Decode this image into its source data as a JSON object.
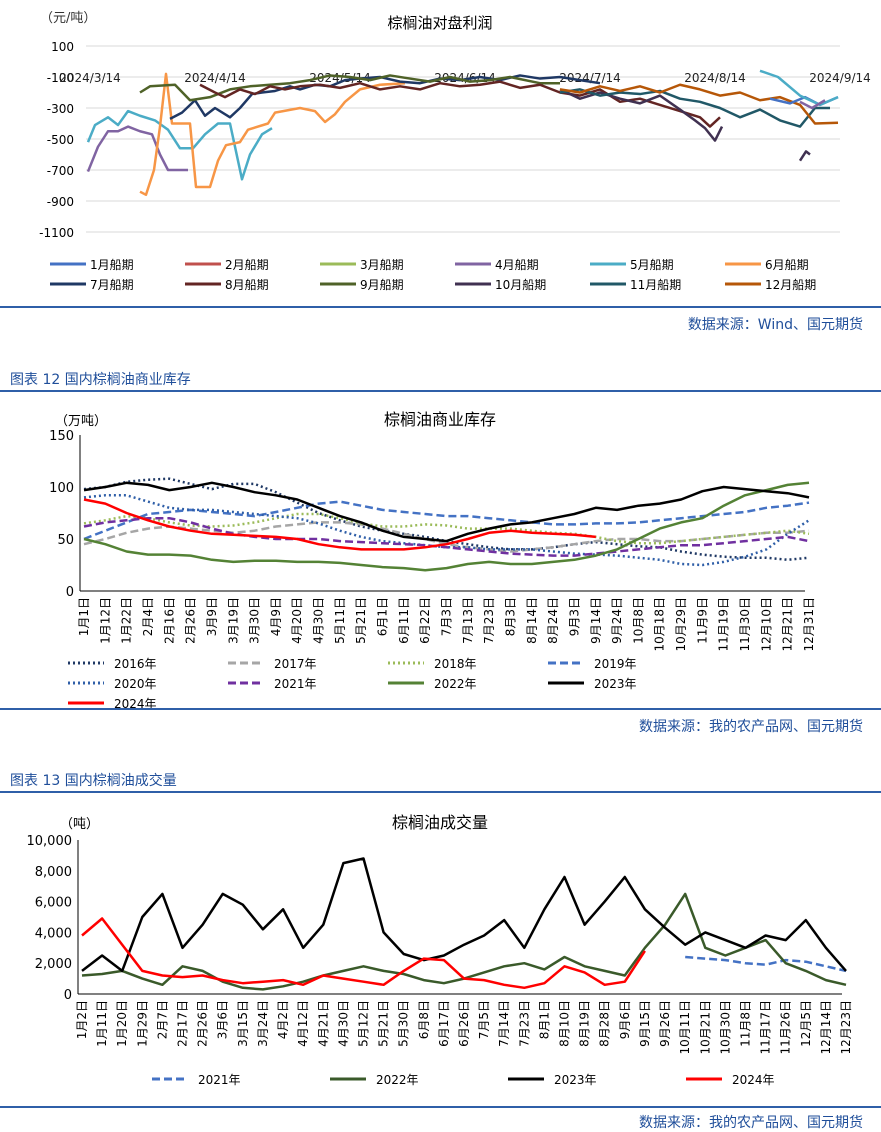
{
  "charts": [
    {
      "type": "line",
      "title": "棕榈油对盘利润",
      "unit": "（元/吨）",
      "ylim": [
        -1100,
        100
      ],
      "yticks": [
        "100",
        "-100",
        "-300",
        "-500",
        "-700",
        "-900",
        "-1100"
      ],
      "xticks": [
        "2024/3/14",
        "2024/4/14",
        "2024/5/14",
        "2024/6/14",
        "2024/7/14",
        "2024/8/14",
        "2024/9/14"
      ],
      "source": "数据来源：Wind、国元期货",
      "series": [
        {
          "name": "1月船期",
          "color": "#4472c4"
        },
        {
          "name": "2月船期",
          "color": "#c0504d"
        },
        {
          "name": "3月船期",
          "color": "#9bbb59"
        },
        {
          "name": "4月船期",
          "color": "#8064a2"
        },
        {
          "name": "5月船期",
          "color": "#4bacc6"
        },
        {
          "name": "6月船期",
          "color": "#f79646"
        },
        {
          "name": "7月船期",
          "color": "#1f3864"
        },
        {
          "name": "8月船期",
          "color": "#632523"
        },
        {
          "name": "9月船期",
          "color": "#4f6228"
        },
        {
          "name": "10月船期",
          "color": "#403151"
        },
        {
          "name": "11月船期",
          "color": "#215867"
        },
        {
          "name": "12月船期",
          "color": "#b65708"
        }
      ]
    },
    {
      "caption": "图表 12  国内棕榈油商业库存",
      "type": "line",
      "title": "棕榈油商业库存",
      "unit": "（万吨）",
      "ylim": [
        0,
        150
      ],
      "yticks": [
        "150",
        "100",
        "50",
        "0"
      ],
      "xticks": [
        "1月1日",
        "1月12日",
        "1月22日",
        "2月4日",
        "2月16日",
        "2月26日",
        "3月9日",
        "3月19日",
        "3月30日",
        "4月9日",
        "4月20日",
        "4月30日",
        "5月11日",
        "5月21日",
        "6月1日",
        "6月11日",
        "6月22日",
        "7月3日",
        "7月13日",
        "7月23日",
        "8月3日",
        "8月14日",
        "8月24日",
        "9月3日",
        "9月14日",
        "9月24日",
        "10月8日",
        "10月18日",
        "10月29日",
        "11月9日",
        "11月19日",
        "11月30日",
        "12月10日",
        "12月21日",
        "12月31日"
      ],
      "source": "数据来源：我的农产品网、国元期货",
      "series": [
        {
          "name": "2016年",
          "color": "#1f3864",
          "dash": "2,3",
          "values": [
            98,
            100,
            105,
            107,
            108,
            103,
            98,
            103,
            103,
            95,
            85,
            75,
            68,
            62,
            58,
            55,
            52,
            48,
            45,
            42,
            40,
            40,
            42,
            45,
            47,
            45,
            43,
            42,
            38,
            35,
            33,
            32,
            32,
            30,
            32
          ]
        },
        {
          "name": "2017年",
          "color": "#a6a6a6",
          "dash": "8,4",
          "values": [
            45,
            50,
            56,
            60,
            62,
            60,
            58,
            56,
            58,
            62,
            64,
            66,
            66,
            64,
            60,
            55,
            50,
            45,
            42,
            40,
            38,
            40,
            42,
            45,
            48,
            50,
            50,
            48,
            48,
            50,
            52,
            54,
            56,
            56,
            58
          ]
        },
        {
          "name": "2018年",
          "color": "#9bbb59",
          "dash": "2,3",
          "values": [
            65,
            68,
            72,
            70,
            66,
            63,
            62,
            63,
            66,
            70,
            74,
            74,
            70,
            65,
            62,
            62,
            64,
            63,
            60,
            60,
            60,
            58,
            56,
            55,
            52,
            48,
            46,
            46,
            48,
            50,
            52,
            54,
            56,
            58,
            55
          ]
        },
        {
          "name": "2019年",
          "color": "#4472c4",
          "dash": "8,4",
          "values": [
            50,
            58,
            66,
            74,
            76,
            78,
            76,
            74,
            72,
            76,
            80,
            84,
            86,
            82,
            78,
            76,
            74,
            72,
            72,
            70,
            68,
            66,
            64,
            64,
            65,
            65,
            66,
            68,
            70,
            72,
            74,
            76,
            80,
            82,
            85
          ]
        },
        {
          "name": "2020年",
          "color": "#2f5fa8",
          "dash": "2,3",
          "values": [
            90,
            92,
            92,
            86,
            80,
            78,
            78,
            76,
            74,
            72,
            70,
            65,
            58,
            52,
            48,
            46,
            44,
            42,
            42,
            40,
            40,
            40,
            38,
            36,
            35,
            34,
            32,
            30,
            26,
            25,
            28,
            33,
            40,
            55,
            68
          ]
        },
        {
          "name": "2021年",
          "color": "#7030a0",
          "dash": "8,4",
          "values": [
            62,
            66,
            68,
            70,
            70,
            66,
            60,
            55,
            52,
            50,
            50,
            50,
            48,
            47,
            46,
            45,
            44,
            42,
            40,
            38,
            36,
            35,
            34,
            34,
            36,
            38,
            40,
            42,
            44,
            44,
            46,
            48,
            50,
            52,
            48
          ]
        },
        {
          "name": "2022年",
          "color": "#548235",
          "dash": "",
          "values": [
            50,
            45,
            38,
            35,
            35,
            34,
            30,
            28,
            29,
            29,
            28,
            28,
            27,
            25,
            23,
            22,
            20,
            22,
            26,
            28,
            26,
            26,
            28,
            30,
            34,
            40,
            50,
            60,
            66,
            70,
            82,
            92,
            97,
            102,
            104
          ]
        },
        {
          "name": "2023年",
          "color": "#000000",
          "dash": "",
          "values": [
            97,
            100,
            104,
            102,
            97,
            100,
            104,
            100,
            95,
            92,
            88,
            80,
            72,
            66,
            58,
            52,
            50,
            48,
            55,
            60,
            64,
            66,
            70,
            74,
            80,
            78,
            82,
            84,
            88,
            96,
            100,
            98,
            96,
            94,
            90
          ]
        },
        {
          "name": "2024年",
          "color": "#ff0000",
          "dash": "",
          "values": [
            88,
            84,
            75,
            68,
            62,
            58,
            55,
            54,
            53,
            52,
            50,
            45,
            42,
            40,
            40,
            40,
            42,
            45,
            50,
            56,
            58,
            56,
            55,
            54,
            52
          ]
        }
      ]
    },
    {
      "caption": "图表 13  国内棕榈油成交量",
      "type": "line",
      "title": "棕榈油成交量",
      "unit": "（吨）",
      "ylim": [
        0,
        10000
      ],
      "yticks": [
        "10,000",
        "8,000",
        "6,000",
        "4,000",
        "2,000",
        "0"
      ],
      "xticks": [
        "1月2日",
        "1月11日",
        "1月20日",
        "1月29日",
        "2月7日",
        "2月17日",
        "2月26日",
        "3月6日",
        "3月15日",
        "3月24日",
        "4月2日",
        "4月12日",
        "4月21日",
        "4月30日",
        "5月12日",
        "5月21日",
        "5月30日",
        "6月8日",
        "6月17日",
        "6月26日",
        "7月5日",
        "7月14日",
        "7月23日",
        "8月1日",
        "8月10日",
        "8月19日",
        "8月28日",
        "9月6日",
        "9月15日",
        "9月26日",
        "10月11日",
        "10月21日",
        "10月30日",
        "11月8日",
        "11月17日",
        "11月26日",
        "12月5日",
        "12月14日",
        "12月23日"
      ],
      "source": "数据来源：我的农产品网、国元期货",
      "series": [
        {
          "name": "2021年",
          "color": "#4472c4",
          "dash": "8,4",
          "values": [
            null,
            null,
            null,
            null,
            null,
            null,
            null,
            null,
            null,
            null,
            null,
            null,
            null,
            null,
            null,
            null,
            null,
            null,
            null,
            null,
            null,
            null,
            null,
            null,
            null,
            null,
            null,
            null,
            null,
            null,
            2400,
            2300,
            2200,
            2000,
            1900,
            2200,
            2100,
            1800,
            1500
          ]
        },
        {
          "name": "2022年",
          "color": "#3a5a2a",
          "dash": "",
          "values": [
            1200,
            1300,
            1500,
            1000,
            600,
            1800,
            1500,
            800,
            400,
            300,
            500,
            800,
            1200,
            1500,
            1800,
            1500,
            1300,
            900,
            700,
            1000,
            1400,
            1800,
            2000,
            1600,
            2400,
            1800,
            1500,
            1200,
            3000,
            4500,
            6500,
            3000,
            2500,
            3000,
            3500,
            2000,
            1500,
            900,
            600
          ]
        },
        {
          "name": "2023年",
          "color": "#000000",
          "dash": "",
          "values": [
            1500,
            2500,
            1500,
            5000,
            6500,
            3000,
            4500,
            6500,
            5800,
            4200,
            5500,
            3000,
            4500,
            8500,
            8800,
            4000,
            2600,
            2200,
            2500,
            3200,
            3800,
            4800,
            3000,
            5500,
            7600,
            4500,
            6000,
            7600,
            5500,
            4300,
            3200,
            4000,
            3500,
            3000,
            3800,
            3500,
            4800,
            3000,
            1500
          ]
        },
        {
          "name": "2024年",
          "color": "#ff0000",
          "dash": "",
          "values": [
            3800,
            4900,
            3200,
            1500,
            1200,
            1100,
            1200,
            900,
            700,
            800,
            900,
            600,
            1200,
            1000,
            800,
            600,
            1500,
            2300,
            2200,
            1000,
            900,
            600,
            400,
            700,
            1800,
            1400,
            600,
            800,
            2800
          ]
        }
      ]
    }
  ]
}
